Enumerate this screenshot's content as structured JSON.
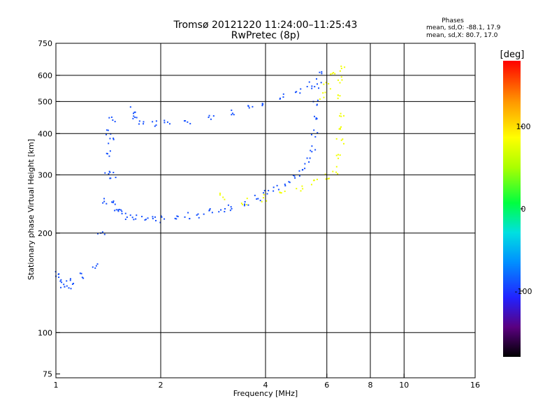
{
  "chart_data": {
    "type": "scatter",
    "title": "Tromsø 20121220 11:24:00–11:25:43",
    "subtitle": "RwPretec (8p)",
    "xlabel": "Frequency [MHz]",
    "ylabel": "Stationary phase Virtual Height [km]",
    "xscale": "log",
    "yscale": "log",
    "xlim": [
      1,
      16
    ],
    "ylim": [
      73,
      750
    ],
    "x_ticks": [
      1,
      2,
      4,
      6,
      8,
      10,
      16
    ],
    "y_ticks": [
      75,
      100,
      200,
      300,
      400,
      500,
      600,
      750
    ],
    "x_gridlines": [
      2,
      4,
      6,
      8,
      10
    ],
    "y_gridlines": [
      100,
      200,
      300,
      400,
      500,
      600
    ],
    "grid": true,
    "info": {
      "header": "Phases",
      "line1": "mean, sd,O: -88.1, 17.9",
      "line2": "mean, sd,X: 80.7, 17.0"
    },
    "colorbar": {
      "label": "[deg]",
      "range": [
        -180,
        180
      ],
      "ticks": [
        100,
        0,
        -100
      ],
      "placement": "right"
    },
    "series": [
      {
        "name": "O",
        "phase": -90,
        "points": [
          [
            1.02,
            150
          ],
          [
            1.03,
            145
          ],
          [
            1.05,
            140
          ],
          [
            1.08,
            138
          ],
          [
            1.12,
            142
          ],
          [
            1.2,
            148
          ],
          [
            1.3,
            160
          ],
          [
            1.35,
            200
          ],
          [
            1.38,
            250
          ],
          [
            1.4,
            300
          ],
          [
            1.42,
            350
          ],
          [
            1.43,
            400
          ],
          [
            1.45,
            440
          ],
          [
            1.45,
            380
          ],
          [
            1.46,
            300
          ],
          [
            1.48,
            250
          ],
          [
            1.5,
            240
          ],
          [
            1.55,
            230
          ],
          [
            1.62,
            225
          ],
          [
            1.7,
            222
          ],
          [
            1.8,
            220
          ],
          [
            1.9,
            219
          ],
          [
            2.0,
            220
          ],
          [
            2.2,
            222
          ],
          [
            2.4,
            225
          ],
          [
            2.6,
            228
          ],
          [
            2.8,
            232
          ],
          [
            3.0,
            236
          ],
          [
            3.2,
            240
          ],
          [
            3.5,
            248
          ],
          [
            3.8,
            257
          ],
          [
            4.0,
            263
          ],
          [
            4.3,
            272
          ],
          [
            4.6,
            283
          ],
          [
            4.9,
            296
          ],
          [
            5.1,
            310
          ],
          [
            5.3,
            330
          ],
          [
            5.45,
            360
          ],
          [
            5.55,
            400
          ],
          [
            5.6,
            450
          ],
          [
            5.63,
            500
          ],
          [
            5.65,
            560
          ],
          [
            5.7,
            600
          ],
          [
            5.4,
            560
          ],
          [
            5.0,
            540
          ],
          [
            4.5,
            515
          ],
          [
            4.0,
            495
          ],
          [
            3.6,
            478
          ],
          [
            3.2,
            462
          ],
          [
            2.8,
            448
          ],
          [
            2.4,
            438
          ],
          [
            2.1,
            432
          ],
          [
            1.9,
            430
          ],
          [
            1.75,
            430
          ],
          [
            1.7,
            445
          ],
          [
            1.68,
            470
          ]
        ]
      },
      {
        "name": "X",
        "phase": 80,
        "points": [
          [
            3.0,
            258
          ],
          [
            3.5,
            250
          ],
          [
            4.0,
            255
          ],
          [
            4.5,
            265
          ],
          [
            5.0,
            275
          ],
          [
            5.5,
            285
          ],
          [
            6.0,
            295
          ],
          [
            6.3,
            310
          ],
          [
            6.45,
            340
          ],
          [
            6.55,
            380
          ],
          [
            6.6,
            420
          ],
          [
            6.65,
            460
          ],
          [
            6.6,
            520
          ],
          [
            6.5,
            580
          ],
          [
            6.7,
            630
          ],
          [
            6.2,
            600
          ],
          [
            6.0,
            560
          ],
          [
            5.8,
            520
          ]
        ]
      }
    ]
  }
}
